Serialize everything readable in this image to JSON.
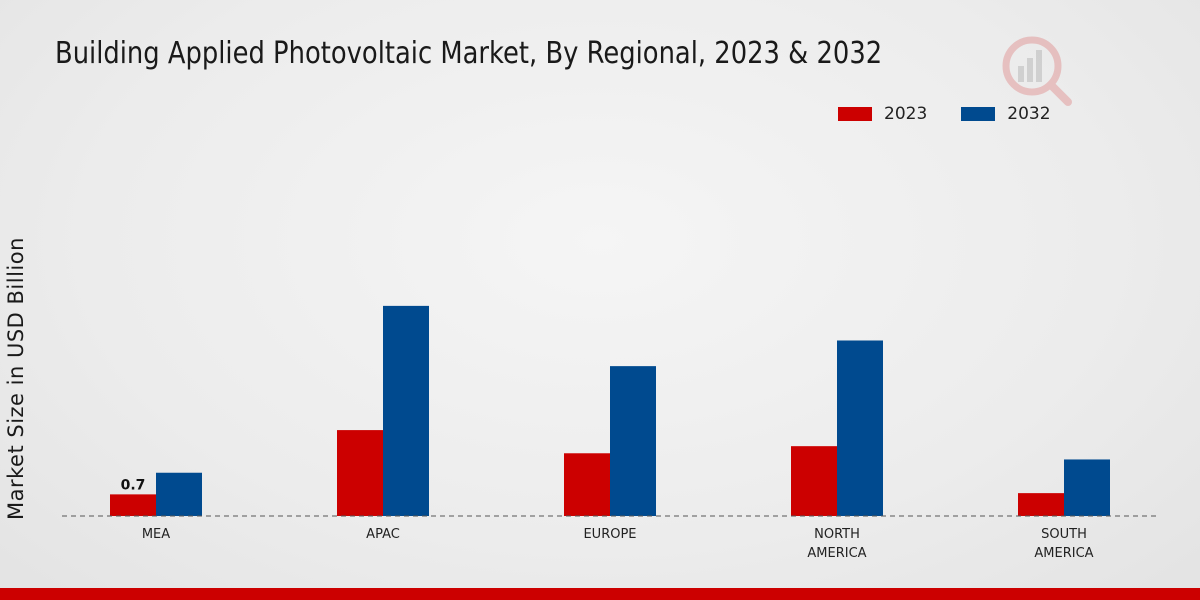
{
  "title": "Building Applied Photovoltaic Market, By Regional, 2023 & 2032",
  "legend": [
    {
      "label": "2023",
      "color": "#cc0000"
    },
    {
      "label": "2032",
      "color": "#004a8f"
    }
  ],
  "chart_data": {
    "type": "bar",
    "title": "Building Applied Photovoltaic Market, By Regional, 2023 & 2032",
    "xlabel": "",
    "ylabel": "Market Size in USD Billion",
    "categories": [
      [
        "MEA"
      ],
      [
        "APAC"
      ],
      [
        "EUROPE"
      ],
      [
        "NORTH",
        "AMERICA"
      ],
      [
        "SOUTH",
        "AMERICA"
      ]
    ],
    "series": [
      {
        "name": "2023",
        "color": "#cc0000",
        "values": [
          0.7,
          2.78,
          2.03,
          2.26,
          0.74
        ]
      },
      {
        "name": "2032",
        "color": "#004a8f",
        "values": [
          1.4,
          6.8,
          4.85,
          5.68,
          1.83
        ]
      }
    ],
    "data_labels": [
      {
        "series": 0,
        "index": 0,
        "text": "0.7"
      }
    ],
    "ylim": [
      0,
      10
    ],
    "grid": false,
    "legend_position": "top-right"
  }
}
